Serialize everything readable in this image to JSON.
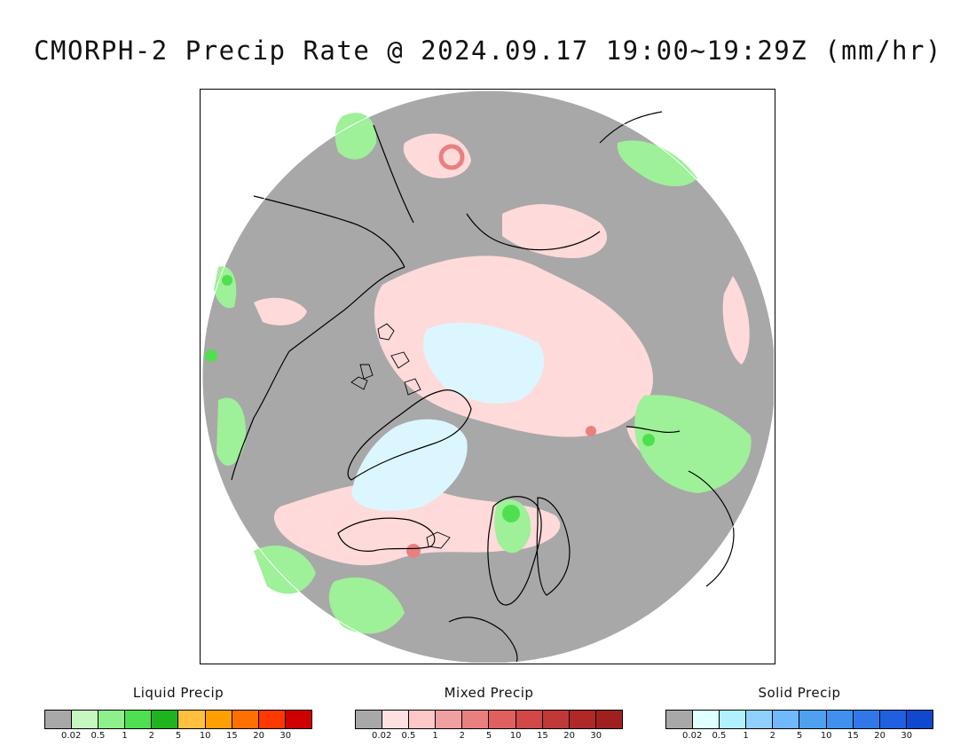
{
  "title": "CMORPH-2 Precip Rate @ 2024.09.17 19:00~19:29Z (mm/hr)",
  "map": {
    "projection": "north polar stereographic",
    "colors": {
      "no_precip": "#a8a8a8",
      "outside": "#ffffff",
      "coast": "#000000"
    }
  },
  "legends": [
    {
      "title": "Liquid Precip",
      "colors": [
        "#a8a8a8",
        "#c6f7c0",
        "#8ef08a",
        "#4fe04f",
        "#1fb31f",
        "#ffc040",
        "#ffa000",
        "#ff7000",
        "#ff3a00",
        "#d00000"
      ],
      "ticks": [
        "0.02",
        "0.5",
        "1",
        "2",
        "5",
        "10",
        "15",
        "20",
        "30"
      ]
    },
    {
      "title": "Mixed Precip",
      "colors": [
        "#a8a8a8",
        "#ffe0e0",
        "#ffc8c8",
        "#f0a0a0",
        "#e88080",
        "#e06060",
        "#d04848",
        "#c03838",
        "#b02828",
        "#a02020"
      ],
      "ticks": [
        "0.02",
        "0.5",
        "1",
        "2",
        "5",
        "10",
        "15",
        "20",
        "30"
      ]
    },
    {
      "title": "Solid Precip",
      "colors": [
        "#a8a8a8",
        "#e0ffff",
        "#b0f0ff",
        "#90d0ff",
        "#70b8ff",
        "#50a0f0",
        "#4090f0",
        "#3078e8",
        "#2060e0",
        "#1048d0"
      ],
      "ticks": [
        "0.02",
        "0.5",
        "1",
        "2",
        "5",
        "10",
        "15",
        "20",
        "30"
      ]
    }
  ]
}
